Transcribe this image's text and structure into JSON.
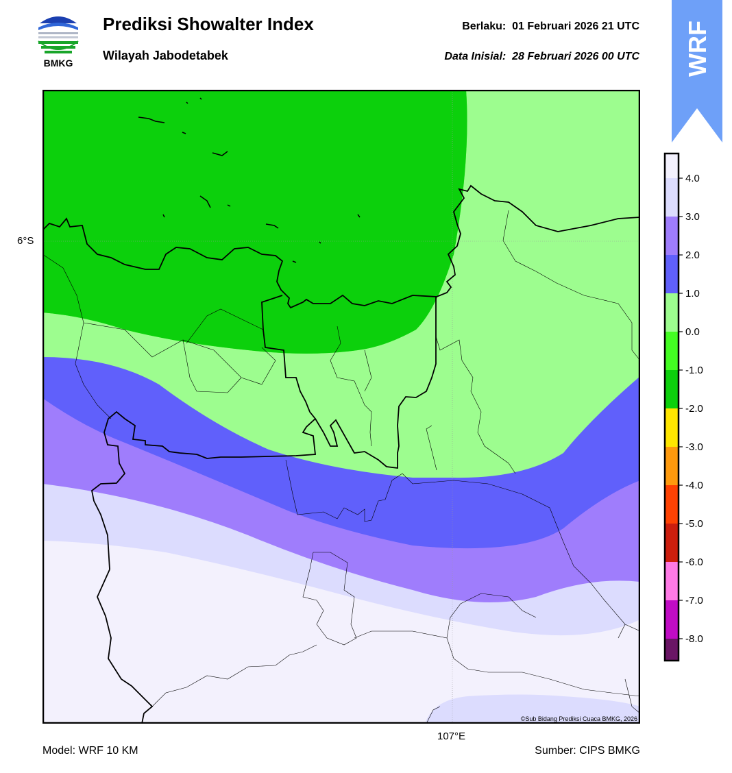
{
  "header": {
    "title": "Prediksi Showalter Index",
    "region": "Wilayah Jabodetabek",
    "valid_label": "Berlaku:",
    "valid_time": "01 Februari 2026 21 UTC",
    "init_label": "Data Inisial:",
    "init_time": "28 Februari 2026 00 UTC"
  },
  "logo": {
    "text": "BMKG",
    "icon": "bmkg-logo-icon"
  },
  "banner": {
    "text": "WRF",
    "color": "#6ea0f8"
  },
  "map": {
    "lat_label": "6°S",
    "lon_label": "107°E",
    "credit": "©Sub Bidang Prediksi Cuaca BMKG, 2026"
  },
  "colorbar": {
    "ticks": [
      "4.0",
      "3.0",
      "2.0",
      "1.0",
      "0.0",
      "-1.0",
      "-2.0",
      "-3.0",
      "-4.0",
      "-5.0",
      "-6.0",
      "-7.0",
      "-8.0"
    ],
    "bands": [
      {
        "label": "> 4.0",
        "color": "#f3f1fd"
      },
      {
        "label": "3.0 to 4.0",
        "color": "#dcdcfe"
      },
      {
        "label": "2.0 to 3.0",
        "color": "#9f7dfc"
      },
      {
        "label": "1.0 to 2.0",
        "color": "#6060fb"
      },
      {
        "label": "0.0 to 1.0",
        "color": "#9dfd8f"
      },
      {
        "label": "-1.0 to 0.0",
        "color": "#43fd22"
      },
      {
        "label": "-2.0 to -1.0",
        "color": "#0cd00c"
      },
      {
        "label": "-3.0 to -2.0",
        "color": "#ffe600"
      },
      {
        "label": "-4.0 to -3.0",
        "color": "#fe9a0e"
      },
      {
        "label": "-5.0 to -4.0",
        "color": "#fe4203"
      },
      {
        "label": "-6.0 to -5.0",
        "color": "#cc1e0e"
      },
      {
        "label": "-7.0 to -6.0",
        "color": "#ff7ae6"
      },
      {
        "label": "-8.0 to -7.0",
        "color": "#c10cc5"
      },
      {
        "label": "< -8.0",
        "color": "#6a1565"
      }
    ]
  },
  "footer": {
    "model": "Model: WRF 10 KM",
    "source": "Sumber: CIPS BMKG"
  }
}
